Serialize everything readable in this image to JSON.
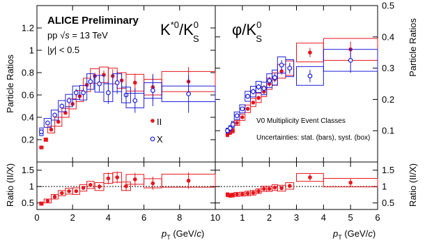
{
  "header": {
    "preliminary": "ALICE Preliminary",
    "energy_prefix": "pp ",
    "energy_sqrt": "√",
    "energy_s": "s",
    "energy_suffix": " = 13 TeV",
    "rapidity_prefix": "|",
    "rapidity_y": "y",
    "rapidity_suffix": "| < 0.5"
  },
  "left_title": {
    "main": "K",
    "sup": "*0",
    "slash": "/K",
    "sup2": "0",
    "sub2": "S"
  },
  "right_title": {
    "main": "φ/K",
    "sup": "0",
    "sub": "S"
  },
  "legend": {
    "II": "II",
    "X": "X",
    "note1": "V0 Multiplicity Event Classes",
    "note2": "Uncertainties: stat. (bars), syst. (box)"
  },
  "axes": {
    "ylabel_left": "Particle Ratios",
    "ylabel_right": "Particle Ratios",
    "ratio_left": "Ratio (II/X)",
    "ratio_right": "Ratio (II/X)",
    "xlabel_p": "p",
    "xlabel_T": "T",
    "xlabel_unit_open": " (GeV/",
    "xlabel_c": "c",
    "xlabel_unit_close": ")"
  },
  "colors": {
    "class_II": "#e8151b",
    "class_X": "#1c1cd9"
  },
  "chart_data": [
    {
      "type": "scatter",
      "panel": "kstar-ratio",
      "title": "K*0/K0S",
      "xlim": [
        0,
        10
      ],
      "ylim": [
        0,
        1.4
      ],
      "xticks": [
        0,
        2,
        4,
        6,
        8,
        10
      ],
      "yticks": [
        0.2,
        0.4,
        0.6,
        0.8,
        1,
        1.2
      ],
      "ytick_labels": [
        "0.2",
        "0.4",
        "0.6",
        "0.8",
        "1",
        "1.2"
      ],
      "series": [
        {
          "name": "II",
          "marker": "filled-circle",
          "points": [
            {
              "x": 0.25,
              "y": 0.13,
              "xw": 0.1,
              "stat": 0.008,
              "sys": 0.012
            },
            {
              "x": 0.5,
              "y": 0.2,
              "xw": 0.1,
              "stat": 0.01,
              "sys": 0.015
            },
            {
              "x": 0.8,
              "y": 0.29,
              "xw": 0.2,
              "stat": 0.012,
              "sys": 0.03
            },
            {
              "x": 1.2,
              "y": 0.36,
              "xw": 0.2,
              "stat": 0.015,
              "sys": 0.04
            },
            {
              "x": 1.6,
              "y": 0.44,
              "xw": 0.2,
              "stat": 0.015,
              "sys": 0.04
            },
            {
              "x": 2.0,
              "y": 0.52,
              "xw": 0.2,
              "stat": 0.02,
              "sys": 0.045
            },
            {
              "x": 2.4,
              "y": 0.59,
              "xw": 0.2,
              "stat": 0.02,
              "sys": 0.05
            },
            {
              "x": 2.8,
              "y": 0.69,
              "xw": 0.2,
              "stat": 0.025,
              "sys": 0.06
            },
            {
              "x": 3.25,
              "y": 0.77,
              "xw": 0.25,
              "stat": 0.03,
              "sys": 0.065
            },
            {
              "x": 3.75,
              "y": 0.78,
              "xw": 0.25,
              "stat": 0.04,
              "sys": 0.07
            },
            {
              "x": 4.25,
              "y": 0.77,
              "xw": 0.25,
              "stat": 0.06,
              "sys": 0.07
            },
            {
              "x": 4.75,
              "y": 0.73,
              "xw": 0.25,
              "stat": 0.07,
              "sys": 0.07
            },
            {
              "x": 5.5,
              "y": 0.71,
              "xw": 0.5,
              "stat": 0.08,
              "sys": 0.075
            },
            {
              "x": 6.5,
              "y": 0.67,
              "xw": 0.5,
              "stat": 0.12,
              "sys": 0.07
            },
            {
              "x": 8.5,
              "y": 0.72,
              "xw": 1.5,
              "stat": 0.13,
              "sys": 0.09
            }
          ]
        },
        {
          "name": "X",
          "marker": "open-circle",
          "points": [
            {
              "x": 0.25,
              "y": 0.27,
              "xw": 0.1,
              "stat": 0.015,
              "sys": 0.035
            },
            {
              "x": 0.6,
              "y": 0.35,
              "xw": 0.2,
              "stat": 0.02,
              "sys": 0.04
            },
            {
              "x": 1.0,
              "y": 0.42,
              "xw": 0.2,
              "stat": 0.02,
              "sys": 0.045
            },
            {
              "x": 1.4,
              "y": 0.5,
              "xw": 0.2,
              "stat": 0.025,
              "sys": 0.05
            },
            {
              "x": 1.8,
              "y": 0.55,
              "xw": 0.2,
              "stat": 0.03,
              "sys": 0.055
            },
            {
              "x": 2.2,
              "y": 0.62,
              "xw": 0.2,
              "stat": 0.035,
              "sys": 0.06
            },
            {
              "x": 2.6,
              "y": 0.62,
              "xw": 0.2,
              "stat": 0.04,
              "sys": 0.065
            },
            {
              "x": 3.0,
              "y": 0.72,
              "xw": 0.2,
              "stat": 0.05,
              "sys": 0.07
            },
            {
              "x": 3.5,
              "y": 0.7,
              "xw": 0.25,
              "stat": 0.07,
              "sys": 0.075
            },
            {
              "x": 4.0,
              "y": 0.62,
              "xw": 0.25,
              "stat": 0.1,
              "sys": 0.08
            },
            {
              "x": 4.5,
              "y": 0.71,
              "xw": 0.25,
              "stat": 0.1,
              "sys": 0.08
            },
            {
              "x": 5.0,
              "y": 0.6,
              "xw": 0.25,
              "stat": 0.1,
              "sys": 0.07
            },
            {
              "x": 5.5,
              "y": 0.55,
              "xw": 0.5,
              "stat": 0.11,
              "sys": 0.065
            },
            {
              "x": 6.5,
              "y": 0.64,
              "xw": 0.5,
              "stat": 0.14,
              "sys": 0.07
            },
            {
              "x": 8.5,
              "y": 0.61,
              "xw": 1.5,
              "stat": 0.17,
              "sys": 0.07
            }
          ]
        }
      ]
    },
    {
      "type": "scatter",
      "panel": "phi-ratio",
      "title": "φ/K0S",
      "xlim": [
        0,
        6
      ],
      "ylim": [
        0,
        0.5
      ],
      "xticks": [
        0,
        1,
        2,
        3,
        4,
        5,
        6
      ],
      "yticks": [
        0.1,
        0.2,
        0.3,
        0.4,
        0.5
      ],
      "ytick_labels": [
        "0.1",
        "0.2",
        "0.3",
        "0.4",
        "0.5"
      ],
      "series": [
        {
          "name": "II",
          "marker": "filled-circle",
          "points": [
            {
              "x": 0.45,
              "y": 0.087,
              "xw": 0.05,
              "stat": 0.004,
              "sys": 0.006
            },
            {
              "x": 0.55,
              "y": 0.094,
              "xw": 0.05,
              "stat": 0.004,
              "sys": 0.006
            },
            {
              "x": 0.65,
              "y": 0.1,
              "xw": 0.05,
              "stat": 0.004,
              "sys": 0.007
            },
            {
              "x": 0.8,
              "y": 0.125,
              "xw": 0.1,
              "stat": 0.005,
              "sys": 0.008
            },
            {
              "x": 1.0,
              "y": 0.143,
              "xw": 0.1,
              "stat": 0.005,
              "sys": 0.01
            },
            {
              "x": 1.2,
              "y": 0.17,
              "xw": 0.1,
              "stat": 0.006,
              "sys": 0.012
            },
            {
              "x": 1.4,
              "y": 0.19,
              "xw": 0.1,
              "stat": 0.006,
              "sys": 0.013
            },
            {
              "x": 1.6,
              "y": 0.205,
              "xw": 0.1,
              "stat": 0.007,
              "sys": 0.015
            },
            {
              "x": 1.8,
              "y": 0.225,
              "xw": 0.1,
              "stat": 0.008,
              "sys": 0.016
            },
            {
              "x": 2.0,
              "y": 0.25,
              "xw": 0.1,
              "stat": 0.009,
              "sys": 0.018
            },
            {
              "x": 2.2,
              "y": 0.265,
              "xw": 0.1,
              "stat": 0.01,
              "sys": 0.02
            },
            {
              "x": 2.45,
              "y": 0.29,
              "xw": 0.15,
              "stat": 0.012,
              "sys": 0.022
            },
            {
              "x": 2.75,
              "y": 0.3,
              "xw": 0.15,
              "stat": 0.013,
              "sys": 0.023
            },
            {
              "x": 3.5,
              "y": 0.35,
              "xw": 0.5,
              "stat": 0.015,
              "sys": 0.03
            },
            {
              "x": 5.0,
              "y": 0.36,
              "xw": 1.0,
              "stat": 0.025,
              "sys": 0.035
            }
          ]
        },
        {
          "name": "X",
          "marker": "open-circle",
          "points": [
            {
              "x": 0.45,
              "y": 0.1,
              "xw": 0.05,
              "stat": 0.005,
              "sys": 0.008
            },
            {
              "x": 0.55,
              "y": 0.108,
              "xw": 0.05,
              "stat": 0.005,
              "sys": 0.008
            },
            {
              "x": 0.65,
              "y": 0.12,
              "xw": 0.05,
              "stat": 0.006,
              "sys": 0.01
            },
            {
              "x": 0.8,
              "y": 0.148,
              "xw": 0.1,
              "stat": 0.006,
              "sys": 0.012
            },
            {
              "x": 1.0,
              "y": 0.17,
              "xw": 0.1,
              "stat": 0.007,
              "sys": 0.013
            },
            {
              "x": 1.2,
              "y": 0.21,
              "xw": 0.1,
              "stat": 0.008,
              "sys": 0.016
            },
            {
              "x": 1.4,
              "y": 0.225,
              "xw": 0.1,
              "stat": 0.009,
              "sys": 0.017
            },
            {
              "x": 1.6,
              "y": 0.24,
              "xw": 0.1,
              "stat": 0.01,
              "sys": 0.018
            },
            {
              "x": 1.8,
              "y": 0.235,
              "xw": 0.1,
              "stat": 0.011,
              "sys": 0.02
            },
            {
              "x": 2.0,
              "y": 0.26,
              "xw": 0.1,
              "stat": 0.012,
              "sys": 0.022
            },
            {
              "x": 2.2,
              "y": 0.27,
              "xw": 0.1,
              "stat": 0.014,
              "sys": 0.024
            },
            {
              "x": 2.45,
              "y": 0.31,
              "xw": 0.15,
              "stat": 0.016,
              "sys": 0.026
            },
            {
              "x": 2.75,
              "y": 0.3,
              "xw": 0.15,
              "stat": 0.017,
              "sys": 0.027
            },
            {
              "x": 3.5,
              "y": 0.275,
              "xw": 0.5,
              "stat": 0.02,
              "sys": 0.03
            },
            {
              "x": 5.0,
              "y": 0.325,
              "xw": 1.0,
              "stat": 0.04,
              "sys": 0.035
            }
          ]
        }
      ]
    },
    {
      "type": "scatter",
      "panel": "kstar-double-ratio",
      "xlim": [
        0,
        10
      ],
      "ylim": [
        0.3,
        1.75
      ],
      "xticks": [
        0,
        2,
        4,
        6,
        8,
        10
      ],
      "yticks": [
        0.5,
        1,
        1.5
      ],
      "ytick_labels": [
        "0.5",
        "1",
        "1.5"
      ],
      "reference_line": 1,
      "series": [
        {
          "name": "II/X",
          "points": [
            {
              "x": 0.25,
              "y": 0.48,
              "xw": 0.1,
              "stat": 0.03,
              "sys": 0.05
            },
            {
              "x": 0.6,
              "y": 0.56,
              "xw": 0.2,
              "stat": 0.03,
              "sys": 0.06
            },
            {
              "x": 1.0,
              "y": 0.69,
              "xw": 0.2,
              "stat": 0.03,
              "sys": 0.07
            },
            {
              "x": 1.4,
              "y": 0.8,
              "xw": 0.2,
              "stat": 0.03,
              "sys": 0.08
            },
            {
              "x": 1.8,
              "y": 0.86,
              "xw": 0.2,
              "stat": 0.04,
              "sys": 0.09
            },
            {
              "x": 2.2,
              "y": 0.86,
              "xw": 0.2,
              "stat": 0.05,
              "sys": 0.1
            },
            {
              "x": 2.6,
              "y": 0.96,
              "xw": 0.2,
              "stat": 0.05,
              "sys": 0.1
            },
            {
              "x": 3.0,
              "y": 1.05,
              "xw": 0.2,
              "stat": 0.06,
              "sys": 0.11
            },
            {
              "x": 3.5,
              "y": 1.0,
              "xw": 0.25,
              "stat": 0.08,
              "sys": 0.12
            },
            {
              "x": 4.0,
              "y": 1.25,
              "xw": 0.25,
              "stat": 0.18,
              "sys": 0.15
            },
            {
              "x": 4.5,
              "y": 1.28,
              "xw": 0.25,
              "stat": 0.18,
              "sys": 0.15
            },
            {
              "x": 5.0,
              "y": 1.01,
              "xw": 0.25,
              "stat": 0.15,
              "sys": 0.13
            },
            {
              "x": 5.5,
              "y": 1.22,
              "xw": 0.5,
              "stat": 0.2,
              "sys": 0.15
            },
            {
              "x": 6.5,
              "y": 1.1,
              "xw": 0.5,
              "stat": 0.2,
              "sys": 0.14
            },
            {
              "x": 8.5,
              "y": 1.18,
              "xw": 1.5,
              "stat": 0.25,
              "sys": 0.2
            }
          ]
        }
      ]
    },
    {
      "type": "scatter",
      "panel": "phi-double-ratio",
      "xlim": [
        0,
        6
      ],
      "ylim": [
        0.3,
        1.75
      ],
      "xticks": [
        0,
        1,
        2,
        3,
        4,
        5,
        6
      ],
      "yticks": [
        0.5,
        1,
        1.5
      ],
      "ytick_labels": [
        "0.5",
        "1",
        "1.5"
      ],
      "reference_line": 1,
      "series": [
        {
          "name": "II/X",
          "points": [
            {
              "x": 0.45,
              "y": 0.75,
              "xw": 0.05,
              "stat": 0.04,
              "sys": 0.06
            },
            {
              "x": 0.55,
              "y": 0.73,
              "xw": 0.05,
              "stat": 0.04,
              "sys": 0.06
            },
            {
              "x": 0.65,
              "y": 0.74,
              "xw": 0.05,
              "stat": 0.04,
              "sys": 0.06
            },
            {
              "x": 0.8,
              "y": 0.76,
              "xw": 0.1,
              "stat": 0.04,
              "sys": 0.06
            },
            {
              "x": 1.0,
              "y": 0.77,
              "xw": 0.1,
              "stat": 0.04,
              "sys": 0.06
            },
            {
              "x": 1.2,
              "y": 0.79,
              "xw": 0.1,
              "stat": 0.04,
              "sys": 0.07
            },
            {
              "x": 1.4,
              "y": 0.81,
              "xw": 0.1,
              "stat": 0.04,
              "sys": 0.07
            },
            {
              "x": 1.6,
              "y": 0.86,
              "xw": 0.1,
              "stat": 0.04,
              "sys": 0.07
            },
            {
              "x": 1.8,
              "y": 0.93,
              "xw": 0.1,
              "stat": 0.05,
              "sys": 0.08
            },
            {
              "x": 2.0,
              "y": 0.93,
              "xw": 0.1,
              "stat": 0.05,
              "sys": 0.08
            },
            {
              "x": 2.2,
              "y": 0.97,
              "xw": 0.1,
              "stat": 0.05,
              "sys": 0.09
            },
            {
              "x": 2.45,
              "y": 0.95,
              "xw": 0.15,
              "stat": 0.06,
              "sys": 0.09
            },
            {
              "x": 2.75,
              "y": 1.02,
              "xw": 0.15,
              "stat": 0.06,
              "sys": 0.1
            },
            {
              "x": 3.5,
              "y": 1.28,
              "xw": 0.5,
              "stat": 0.1,
              "sys": 0.12
            },
            {
              "x": 5.0,
              "y": 1.12,
              "xw": 1.0,
              "stat": 0.12,
              "sys": 0.13
            }
          ]
        }
      ]
    }
  ]
}
